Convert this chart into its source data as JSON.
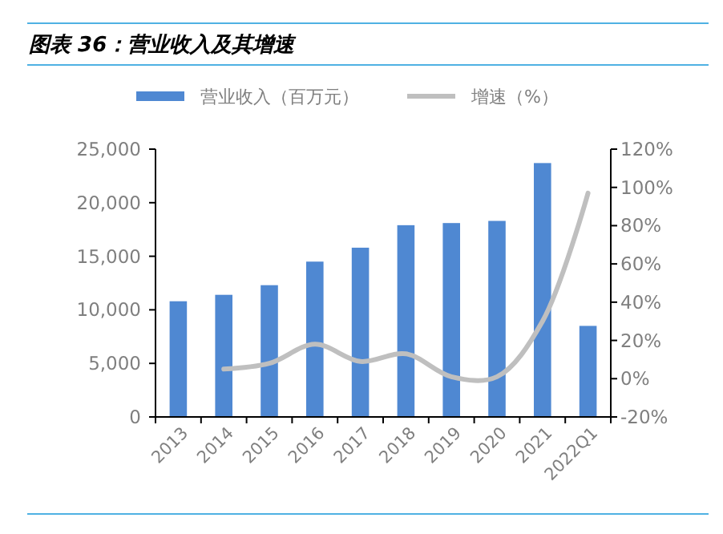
{
  "chart_data": {
    "type": "bar",
    "title": "图表 36：营业收入及其增速",
    "categories": [
      "2013",
      "2014",
      "2015",
      "2016",
      "2017",
      "2018",
      "2019",
      "2020",
      "2021",
      "2022Q1"
    ],
    "series": [
      {
        "name": "营业收入（百万元）",
        "color": "#4f88d2",
        "values": [
          10800,
          11400,
          12300,
          14500,
          15800,
          17900,
          18100,
          18300,
          23700,
          8500
        ]
      },
      {
        "name": "增速（%）",
        "type": "line",
        "axis": "y2",
        "color": "#bfbfbf",
        "values": [
          null,
          5,
          8,
          18,
          9,
          13,
          1,
          1,
          30,
          97
        ]
      }
    ],
    "ylim": [
      0,
      25000
    ],
    "yticks": [
      {
        "value": 0,
        "label": "0"
      },
      {
        "value": 5000,
        "label": "5,000"
      },
      {
        "value": 10000,
        "label": "10,000"
      },
      {
        "value": 15000,
        "label": "15,000"
      },
      {
        "value": 20000,
        "label": "20,000"
      },
      {
        "value": 25000,
        "label": "25,000"
      }
    ],
    "y2lim": [
      -20,
      120
    ],
    "y2ticks": [
      {
        "value": -20,
        "label": "-20%"
      },
      {
        "value": 0,
        "label": "0%"
      },
      {
        "value": 20,
        "label": "20%"
      },
      {
        "value": 40,
        "label": "40%"
      },
      {
        "value": 60,
        "label": "60%"
      },
      {
        "value": 80,
        "label": "80%"
      },
      {
        "value": 100,
        "label": "100%"
      },
      {
        "value": 120,
        "label": "120%"
      }
    ],
    "legend": "top",
    "grid": false
  }
}
